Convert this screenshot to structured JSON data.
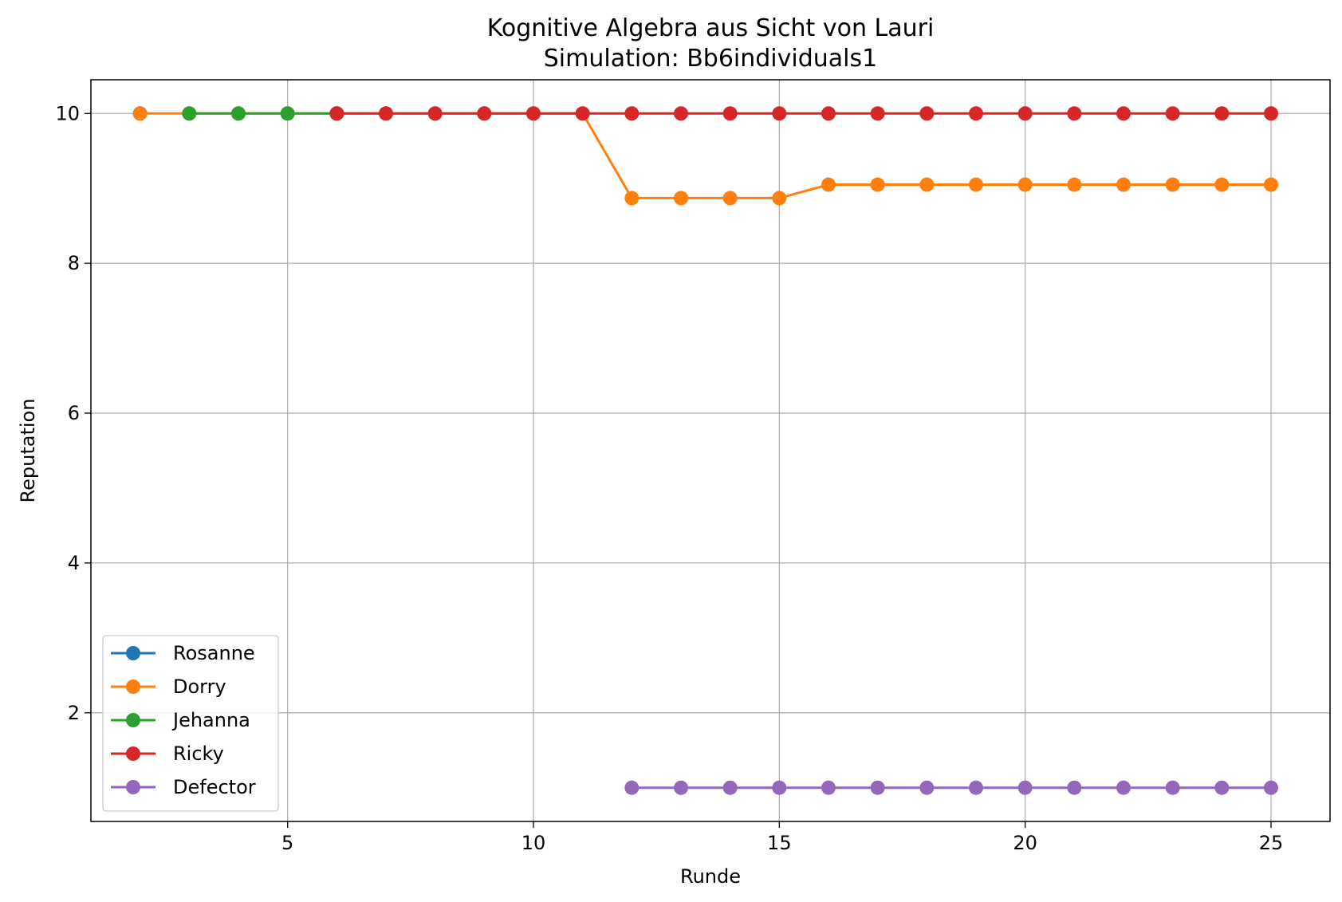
{
  "chart_data": {
    "type": "line",
    "title": "Kognitive Algebra aus Sicht von Lauri",
    "subtitle": "Simulation: Bb6individuals1",
    "xlabel": "Runde",
    "ylabel": "Reputation",
    "xlim": [
      1,
      26.2
    ],
    "ylim": [
      0.55,
      10.45
    ],
    "xticks": [
      5,
      10,
      15,
      20,
      25
    ],
    "yticks": [
      2,
      4,
      6,
      8,
      10
    ],
    "grid": true,
    "legend_position": "lower-left",
    "series": [
      {
        "name": "Rosanne",
        "color": "#1f77b4",
        "x": [
          2
        ],
        "y": [
          10
        ]
      },
      {
        "name": "Dorry",
        "color": "#ff7f0e",
        "x": [
          2,
          3,
          4,
          5,
          6,
          7,
          8,
          9,
          10,
          11,
          12,
          13,
          14,
          15,
          16,
          17,
          18,
          19,
          20,
          21,
          22,
          23,
          24,
          25
        ],
        "y": [
          10,
          10,
          10,
          10,
          10,
          10,
          10,
          10,
          10,
          10,
          8.87,
          8.87,
          8.87,
          8.87,
          9.05,
          9.05,
          9.05,
          9.05,
          9.05,
          9.05,
          9.05,
          9.05,
          9.05,
          9.05
        ]
      },
      {
        "name": "Jehanna",
        "color": "#2ca02c",
        "x": [
          3,
          4,
          5,
          6
        ],
        "y": [
          10,
          10,
          10,
          10
        ]
      },
      {
        "name": "Ricky",
        "color": "#d62728",
        "x": [
          6,
          7,
          8,
          9,
          10,
          11,
          12,
          13,
          14,
          15,
          16,
          17,
          18,
          19,
          20,
          21,
          22,
          23,
          24,
          25
        ],
        "y": [
          10,
          10,
          10,
          10,
          10,
          10,
          10,
          10,
          10,
          10,
          10,
          10,
          10,
          10,
          10,
          10,
          10,
          10,
          10,
          10
        ]
      },
      {
        "name": "Defector",
        "color": "#9467bd",
        "x": [
          12,
          13,
          14,
          15,
          16,
          17,
          18,
          19,
          20,
          21,
          22,
          23,
          24,
          25
        ],
        "y": [
          1,
          1,
          1,
          1,
          1,
          1,
          1,
          1,
          1,
          1,
          1,
          1,
          1,
          1
        ]
      }
    ]
  }
}
